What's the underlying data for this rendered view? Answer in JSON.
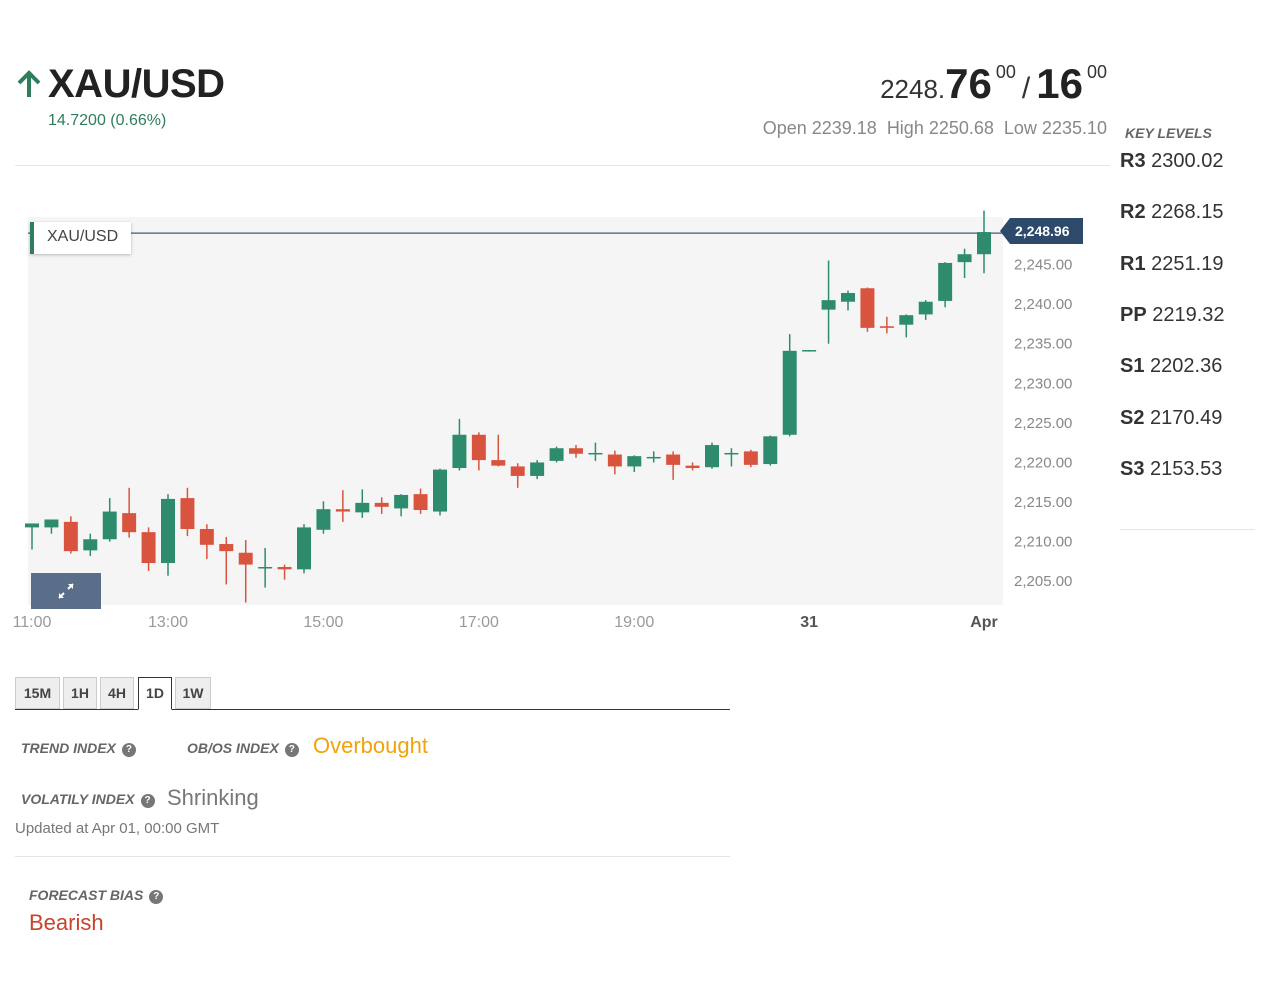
{
  "header": {
    "symbol": "XAU/USD",
    "change": "14.7200 (0.66%)",
    "price_base": "2248.",
    "bid_big": "76",
    "bid_sup": "00",
    "slash": "/",
    "ask_big": "16",
    "ask_sup": "00",
    "open": "Open 2239.18",
    "high": "High 2250.68",
    "low": "Low 2235.10"
  },
  "key_levels": {
    "title": "KEY LEVELS",
    "items": [
      {
        "label": "R3",
        "value": "2300.02"
      },
      {
        "label": "R2",
        "value": "2268.15"
      },
      {
        "label": "R1",
        "value": "2251.19"
      },
      {
        "label": "PP",
        "value": "2219.32"
      },
      {
        "label": "S1",
        "value": "2202.36"
      },
      {
        "label": "S2",
        "value": "2170.49"
      },
      {
        "label": "S3",
        "value": "2153.53"
      }
    ]
  },
  "chart_data": {
    "type": "candlestick",
    "symbol_label": "XAU/USD",
    "last_price_label": "2,248.96",
    "last_price": 2248.96,
    "ylim": [
      2202,
      2251
    ],
    "y_ticks": [
      {
        "value": 2245,
        "label": "2,245.00"
      },
      {
        "value": 2240,
        "label": "2,240.00"
      },
      {
        "value": 2235,
        "label": "2,235.00"
      },
      {
        "value": 2230,
        "label": "2,230.00"
      },
      {
        "value": 2225,
        "label": "2,225.00"
      },
      {
        "value": 2220,
        "label": "2,220.00"
      },
      {
        "value": 2215,
        "label": "2,215.00"
      },
      {
        "value": 2210,
        "label": "2,210.00"
      },
      {
        "value": 2205,
        "label": "2,205.00"
      }
    ],
    "x_ticks": [
      {
        "index": 0,
        "label": "11:00",
        "bold": false
      },
      {
        "index": 7,
        "label": "13:00",
        "bold": false
      },
      {
        "index": 15,
        "label": "15:00",
        "bold": false
      },
      {
        "index": 23,
        "label": "17:00",
        "bold": false
      },
      {
        "index": 31,
        "label": "19:00",
        "bold": false
      },
      {
        "index": 40,
        "label": "31",
        "bold": true
      },
      {
        "index": 49,
        "label": "Apr",
        "bold": true
      }
    ],
    "candles": [
      {
        "o": 2211.8,
        "h": 2212.2,
        "l": 2209.0,
        "c": 2212.3
      },
      {
        "o": 2211.8,
        "h": 2212.8,
        "l": 2211.0,
        "c": 2212.8
      },
      {
        "o": 2212.5,
        "h": 2213.2,
        "l": 2208.5,
        "c": 2208.8
      },
      {
        "o": 2208.9,
        "h": 2211.0,
        "l": 2208.2,
        "c": 2210.3
      },
      {
        "o": 2210.3,
        "h": 2215.5,
        "l": 2210.0,
        "c": 2213.8
      },
      {
        "o": 2213.6,
        "h": 2216.8,
        "l": 2210.5,
        "c": 2211.2
      },
      {
        "o": 2211.2,
        "h": 2211.8,
        "l": 2206.3,
        "c": 2207.3
      },
      {
        "o": 2207.3,
        "h": 2216.0,
        "l": 2205.7,
        "c": 2215.4
      },
      {
        "o": 2215.5,
        "h": 2216.8,
        "l": 2210.7,
        "c": 2211.6
      },
      {
        "o": 2211.6,
        "h": 2212.2,
        "l": 2207.8,
        "c": 2209.6
      },
      {
        "o": 2209.7,
        "h": 2210.6,
        "l": 2204.6,
        "c": 2208.8
      },
      {
        "o": 2208.6,
        "h": 2210.2,
        "l": 2202.3,
        "c": 2207.1
      },
      {
        "o": 2206.8,
        "h": 2209.2,
        "l": 2204.2,
        "c": 2206.8
      },
      {
        "o": 2206.8,
        "h": 2207.1,
        "l": 2205.2,
        "c": 2206.5
      },
      {
        "o": 2206.5,
        "h": 2212.2,
        "l": 2206.0,
        "c": 2211.8
      },
      {
        "o": 2211.5,
        "h": 2215.1,
        "l": 2211.0,
        "c": 2214.1
      },
      {
        "o": 2214.1,
        "h": 2216.5,
        "l": 2212.5,
        "c": 2213.8
      },
      {
        "o": 2213.7,
        "h": 2216.6,
        "l": 2213.0,
        "c": 2214.9
      },
      {
        "o": 2214.9,
        "h": 2215.6,
        "l": 2213.5,
        "c": 2214.4
      },
      {
        "o": 2214.2,
        "h": 2216.0,
        "l": 2213.2,
        "c": 2215.9
      },
      {
        "o": 2216.0,
        "h": 2216.7,
        "l": 2213.5,
        "c": 2214.0
      },
      {
        "o": 2213.8,
        "h": 2219.2,
        "l": 2213.3,
        "c": 2219.1
      },
      {
        "o": 2219.3,
        "h": 2225.5,
        "l": 2219.0,
        "c": 2223.5
      },
      {
        "o": 2223.5,
        "h": 2223.8,
        "l": 2219.0,
        "c": 2220.3
      },
      {
        "o": 2220.3,
        "h": 2223.5,
        "l": 2219.5,
        "c": 2219.6
      },
      {
        "o": 2219.5,
        "h": 2219.9,
        "l": 2216.8,
        "c": 2218.3
      },
      {
        "o": 2218.3,
        "h": 2220.3,
        "l": 2217.9,
        "c": 2220.0
      },
      {
        "o": 2220.2,
        "h": 2222.0,
        "l": 2220.0,
        "c": 2221.8
      },
      {
        "o": 2221.8,
        "h": 2222.2,
        "l": 2220.6,
        "c": 2221.1
      },
      {
        "o": 2221.2,
        "h": 2222.5,
        "l": 2220.2,
        "c": 2221.2
      },
      {
        "o": 2221.0,
        "h": 2221.5,
        "l": 2218.5,
        "c": 2219.5
      },
      {
        "o": 2219.5,
        "h": 2220.9,
        "l": 2218.8,
        "c": 2220.8
      },
      {
        "o": 2220.6,
        "h": 2221.4,
        "l": 2220.0,
        "c": 2220.7
      },
      {
        "o": 2221.0,
        "h": 2221.4,
        "l": 2217.8,
        "c": 2219.7
      },
      {
        "o": 2219.6,
        "h": 2220.0,
        "l": 2219.0,
        "c": 2219.3
      },
      {
        "o": 2219.4,
        "h": 2222.5,
        "l": 2219.2,
        "c": 2222.2
      },
      {
        "o": 2221.2,
        "h": 2221.8,
        "l": 2219.5,
        "c": 2221.2
      },
      {
        "o": 2221.4,
        "h": 2221.6,
        "l": 2219.4,
        "c": 2219.7
      },
      {
        "o": 2219.8,
        "h": 2223.4,
        "l": 2219.6,
        "c": 2223.3
      },
      {
        "o": 2223.5,
        "h": 2236.2,
        "l": 2223.3,
        "c": 2234.1
      },
      {
        "o": 2234.1,
        "h": 2234.2,
        "l": 2234.0,
        "c": 2234.2
      },
      {
        "o": 2239.3,
        "h": 2245.5,
        "l": 2235.0,
        "c": 2240.5
      },
      {
        "o": 2240.3,
        "h": 2241.7,
        "l": 2239.2,
        "c": 2241.4
      },
      {
        "o": 2242.0,
        "h": 2242.1,
        "l": 2236.5,
        "c": 2237.0
      },
      {
        "o": 2237.2,
        "h": 2238.4,
        "l": 2236.3,
        "c": 2237.0
      },
      {
        "o": 2237.4,
        "h": 2238.7,
        "l": 2235.8,
        "c": 2238.6
      },
      {
        "o": 2238.7,
        "h": 2240.5,
        "l": 2238.0,
        "c": 2240.3
      },
      {
        "o": 2240.4,
        "h": 2245.3,
        "l": 2239.6,
        "c": 2245.2
      },
      {
        "o": 2245.3,
        "h": 2247.0,
        "l": 2243.3,
        "c": 2246.3
      },
      {
        "o": 2246.3,
        "h": 2251.8,
        "l": 2243.9,
        "c": 2249.1
      }
    ]
  },
  "timeframes": [
    {
      "label": "15M",
      "active": false
    },
    {
      "label": "1H",
      "active": false
    },
    {
      "label": "4H",
      "active": false
    },
    {
      "label": "1D",
      "active": true
    },
    {
      "label": "1W",
      "active": false
    }
  ],
  "indicators": {
    "trend_label": "TREND INDEX",
    "obos_label": "OB/OS INDEX",
    "obos_value": "Overbought",
    "volatility_label": "VOLATILY INDEX",
    "volatility_value": "Shrinking",
    "updated": "Updated at Apr 01, 00:00 GMT",
    "forecast_label": "FORECAST BIAS",
    "forecast_value": "Bearish",
    "help_glyph": "?"
  },
  "colors": {
    "up": "#2e8b6e",
    "down": "#d9543f",
    "accent_orange": "#f0a30a",
    "bearish_red": "#c9432c",
    "change_green": "#2e7d5b"
  }
}
